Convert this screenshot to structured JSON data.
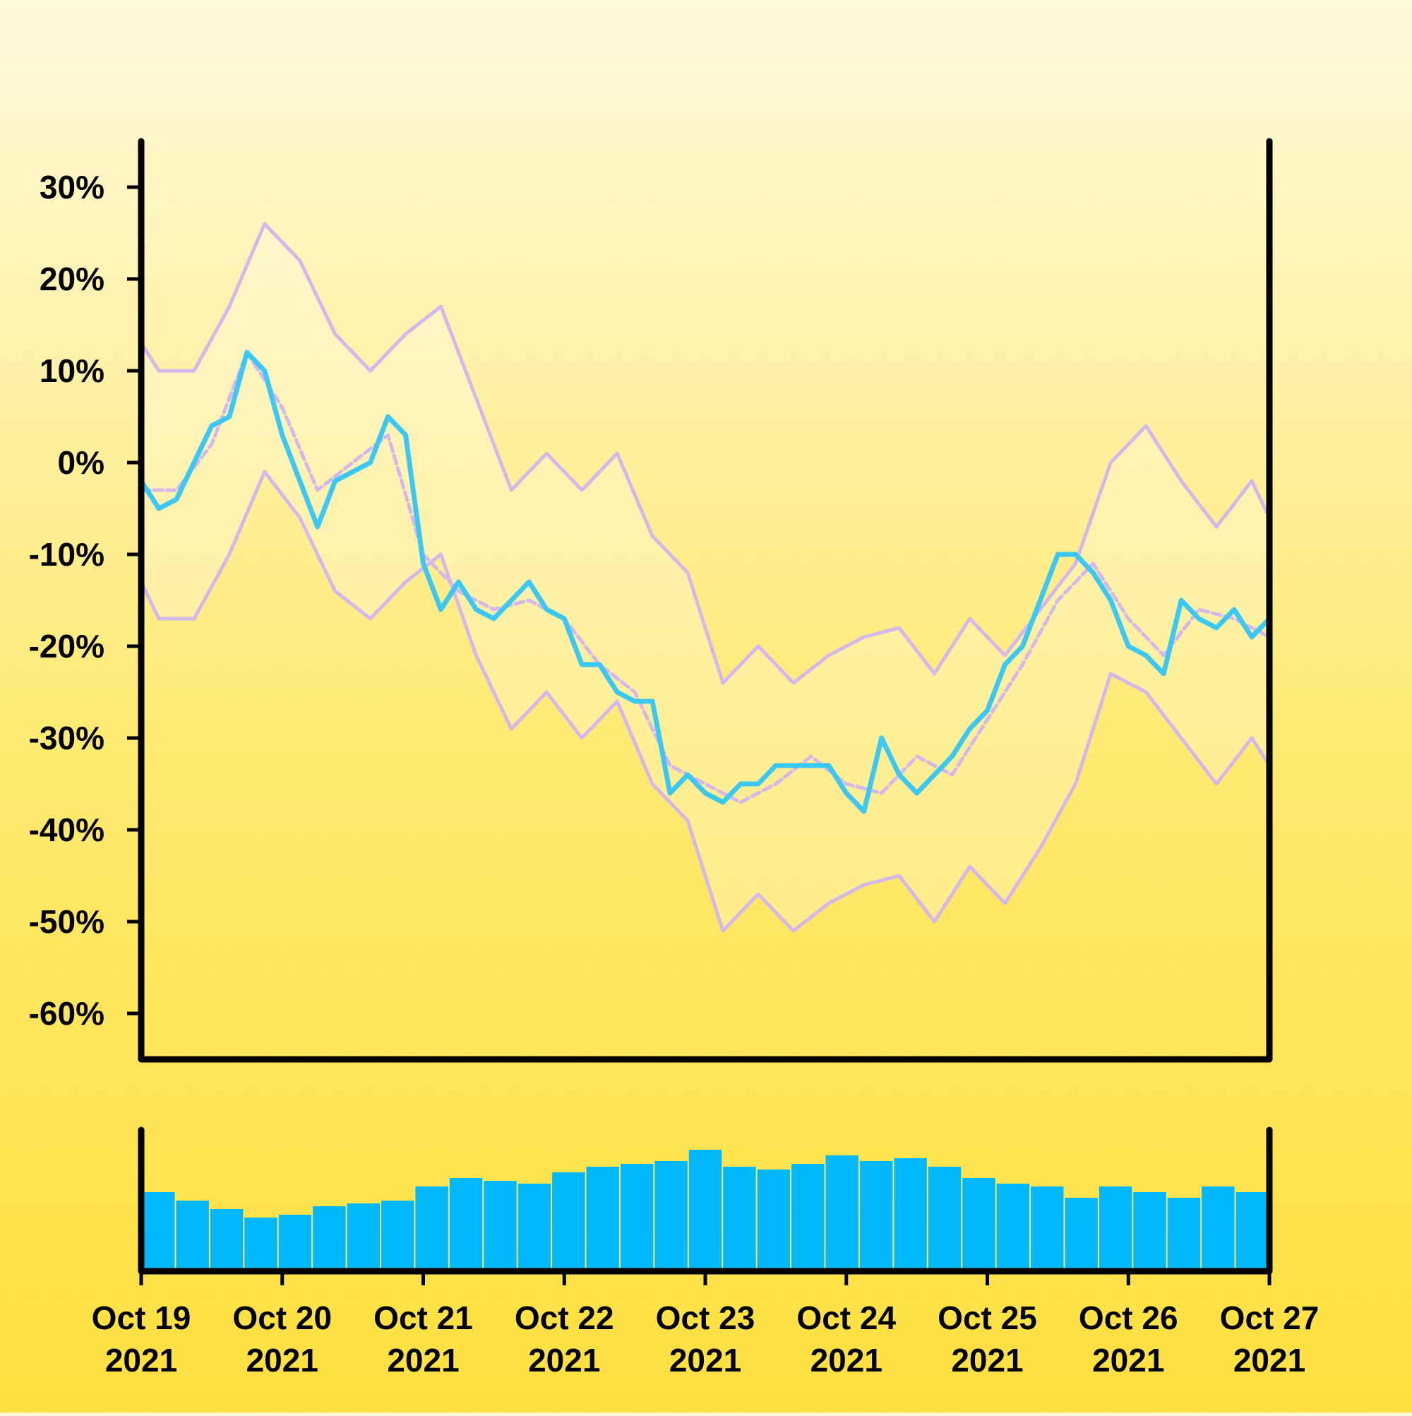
{
  "chart_data": {
    "type": "line",
    "x_range": [
      "2021-10-19",
      "2021-10-27"
    ],
    "ylim": [
      -0.65,
      0.35
    ],
    "y_ticks": [
      {
        "value": 0.3,
        "label": "30%"
      },
      {
        "value": 0.2,
        "label": "20%"
      },
      {
        "value": 0.1,
        "label": "10%"
      },
      {
        "value": 0.0,
        "label": "0%"
      },
      {
        "value": -0.1,
        "label": "-10%"
      },
      {
        "value": -0.2,
        "label": "-20%"
      },
      {
        "value": -0.3,
        "label": "-30%"
      },
      {
        "value": -0.4,
        "label": "-40%"
      },
      {
        "value": -0.5,
        "label": "-50%"
      },
      {
        "value": -0.6,
        "label": "-60%"
      }
    ],
    "x_ticks": [
      {
        "date": "2021-10-19",
        "line1": "Oct 19",
        "line2": "2021"
      },
      {
        "date": "2021-10-20",
        "line1": "Oct 20",
        "line2": "2021"
      },
      {
        "date": "2021-10-21",
        "line1": "Oct 21",
        "line2": "2021"
      },
      {
        "date": "2021-10-22",
        "line1": "Oct 22",
        "line2": "2021"
      },
      {
        "date": "2021-10-23",
        "line1": "Oct 23",
        "line2": "2021"
      },
      {
        "date": "2021-10-24",
        "line1": "Oct 24",
        "line2": "2021"
      },
      {
        "date": "2021-10-25",
        "line1": "Oct 25",
        "line2": "2021"
      },
      {
        "date": "2021-10-26",
        "line1": "Oct 26",
        "line2": "2021"
      },
      {
        "date": "2021-10-27",
        "line1": "Oct 27",
        "line2": "2021"
      }
    ],
    "series": [
      {
        "role": "price",
        "color": "#3cc8f5",
        "points": [
          [
            "2021-10-19T00:00",
            -0.02
          ],
          [
            "2021-10-19T03:00",
            -0.05
          ],
          [
            "2021-10-19T06:00",
            -0.04
          ],
          [
            "2021-10-19T09:00",
            0.0
          ],
          [
            "2021-10-19T12:00",
            0.04
          ],
          [
            "2021-10-19T15:00",
            0.05
          ],
          [
            "2021-10-19T18:00",
            0.12
          ],
          [
            "2021-10-19T21:00",
            0.1
          ],
          [
            "2021-10-20T00:00",
            0.03
          ],
          [
            "2021-10-20T03:00",
            -0.02
          ],
          [
            "2021-10-20T06:00",
            -0.07
          ],
          [
            "2021-10-20T09:00",
            -0.02
          ],
          [
            "2021-10-20T12:00",
            -0.01
          ],
          [
            "2021-10-20T15:00",
            0.0
          ],
          [
            "2021-10-20T18:00",
            0.05
          ],
          [
            "2021-10-20T21:00",
            0.03
          ],
          [
            "2021-10-21T00:00",
            -0.11
          ],
          [
            "2021-10-21T03:00",
            -0.16
          ],
          [
            "2021-10-21T06:00",
            -0.13
          ],
          [
            "2021-10-21T09:00",
            -0.16
          ],
          [
            "2021-10-21T12:00",
            -0.17
          ],
          [
            "2021-10-21T15:00",
            -0.15
          ],
          [
            "2021-10-21T18:00",
            -0.13
          ],
          [
            "2021-10-21T21:00",
            -0.16
          ],
          [
            "2021-10-22T00:00",
            -0.17
          ],
          [
            "2021-10-22T03:00",
            -0.22
          ],
          [
            "2021-10-22T06:00",
            -0.22
          ],
          [
            "2021-10-22T09:00",
            -0.25
          ],
          [
            "2021-10-22T12:00",
            -0.26
          ],
          [
            "2021-10-22T15:00",
            -0.26
          ],
          [
            "2021-10-22T18:00",
            -0.36
          ],
          [
            "2021-10-22T21:00",
            -0.34
          ],
          [
            "2021-10-23T00:00",
            -0.36
          ],
          [
            "2021-10-23T03:00",
            -0.37
          ],
          [
            "2021-10-23T06:00",
            -0.35
          ],
          [
            "2021-10-23T09:00",
            -0.35
          ],
          [
            "2021-10-23T12:00",
            -0.33
          ],
          [
            "2021-10-23T15:00",
            -0.33
          ],
          [
            "2021-10-23T18:00",
            -0.33
          ],
          [
            "2021-10-23T21:00",
            -0.33
          ],
          [
            "2021-10-24T00:00",
            -0.36
          ],
          [
            "2021-10-24T03:00",
            -0.38
          ],
          [
            "2021-10-24T06:00",
            -0.3
          ],
          [
            "2021-10-24T09:00",
            -0.34
          ],
          [
            "2021-10-24T12:00",
            -0.36
          ],
          [
            "2021-10-24T15:00",
            -0.34
          ],
          [
            "2021-10-24T18:00",
            -0.32
          ],
          [
            "2021-10-24T21:00",
            -0.29
          ],
          [
            "2021-10-25T00:00",
            -0.27
          ],
          [
            "2021-10-25T03:00",
            -0.22
          ],
          [
            "2021-10-25T06:00",
            -0.2
          ],
          [
            "2021-10-25T09:00",
            -0.15
          ],
          [
            "2021-10-25T12:00",
            -0.1
          ],
          [
            "2021-10-25T15:00",
            -0.1
          ],
          [
            "2021-10-25T18:00",
            -0.12
          ],
          [
            "2021-10-25T21:00",
            -0.15
          ],
          [
            "2021-10-26T00:00",
            -0.2
          ],
          [
            "2021-10-26T03:00",
            -0.21
          ],
          [
            "2021-10-26T06:00",
            -0.23
          ],
          [
            "2021-10-26T09:00",
            -0.15
          ],
          [
            "2021-10-26T12:00",
            -0.17
          ],
          [
            "2021-10-26T15:00",
            -0.18
          ],
          [
            "2021-10-26T18:00",
            -0.16
          ],
          [
            "2021-10-26T21:00",
            -0.19
          ],
          [
            "2021-10-27T00:00",
            -0.17
          ]
        ]
      },
      {
        "role": "moving-average",
        "color": "#d4b8ec",
        "dashed": true,
        "points": [
          [
            "2021-10-19T00:00",
            -0.03
          ],
          [
            "2021-10-19T06:00",
            -0.03
          ],
          [
            "2021-10-19T12:00",
            0.02
          ],
          [
            "2021-10-19T18:00",
            0.12
          ],
          [
            "2021-10-20T00:00",
            0.06
          ],
          [
            "2021-10-20T06:00",
            -0.03
          ],
          [
            "2021-10-20T12:00",
            0.0
          ],
          [
            "2021-10-20T18:00",
            0.03
          ],
          [
            "2021-10-21T00:00",
            -0.1
          ],
          [
            "2021-10-21T06:00",
            -0.14
          ],
          [
            "2021-10-21T12:00",
            -0.16
          ],
          [
            "2021-10-21T18:00",
            -0.15
          ],
          [
            "2021-10-22T00:00",
            -0.17
          ],
          [
            "2021-10-22T06:00",
            -0.22
          ],
          [
            "2021-10-22T12:00",
            -0.25
          ],
          [
            "2021-10-22T18:00",
            -0.33
          ],
          [
            "2021-10-23T00:00",
            -0.35
          ],
          [
            "2021-10-23T06:00",
            -0.37
          ],
          [
            "2021-10-23T12:00",
            -0.35
          ],
          [
            "2021-10-23T18:00",
            -0.32
          ],
          [
            "2021-10-24T00:00",
            -0.35
          ],
          [
            "2021-10-24T06:00",
            -0.36
          ],
          [
            "2021-10-24T12:00",
            -0.32
          ],
          [
            "2021-10-24T18:00",
            -0.34
          ],
          [
            "2021-10-25T00:00",
            -0.28
          ],
          [
            "2021-10-25T06:00",
            -0.22
          ],
          [
            "2021-10-25T12:00",
            -0.15
          ],
          [
            "2021-10-25T18:00",
            -0.11
          ],
          [
            "2021-10-26T00:00",
            -0.17
          ],
          [
            "2021-10-26T06:00",
            -0.21
          ],
          [
            "2021-10-26T12:00",
            -0.16
          ],
          [
            "2021-10-26T18:00",
            -0.17
          ],
          [
            "2021-10-27T00:00",
            -0.19
          ]
        ]
      },
      {
        "role": "upper-band",
        "color": "#d4b8ec",
        "points": [
          [
            "2021-10-19T00:00",
            0.13
          ],
          [
            "2021-10-19T03:00",
            0.1
          ],
          [
            "2021-10-19T09:00",
            0.1
          ],
          [
            "2021-10-19T15:00",
            0.17
          ],
          [
            "2021-10-19T21:00",
            0.26
          ],
          [
            "2021-10-20T03:00",
            0.22
          ],
          [
            "2021-10-20T09:00",
            0.14
          ],
          [
            "2021-10-20T15:00",
            0.1
          ],
          [
            "2021-10-20T21:00",
            0.14
          ],
          [
            "2021-10-21T03:00",
            0.17
          ],
          [
            "2021-10-21T09:00",
            0.07
          ],
          [
            "2021-10-21T15:00",
            -0.03
          ],
          [
            "2021-10-21T21:00",
            0.01
          ],
          [
            "2021-10-22T03:00",
            -0.03
          ],
          [
            "2021-10-22T09:00",
            0.01
          ],
          [
            "2021-10-22T15:00",
            -0.08
          ],
          [
            "2021-10-22T21:00",
            -0.12
          ],
          [
            "2021-10-23T03:00",
            -0.24
          ],
          [
            "2021-10-23T09:00",
            -0.2
          ],
          [
            "2021-10-23T15:00",
            -0.24
          ],
          [
            "2021-10-23T21:00",
            -0.21
          ],
          [
            "2021-10-24T03:00",
            -0.19
          ],
          [
            "2021-10-24T09:00",
            -0.18
          ],
          [
            "2021-10-24T15:00",
            -0.23
          ],
          [
            "2021-10-24T21:00",
            -0.17
          ],
          [
            "2021-10-25T03:00",
            -0.21
          ],
          [
            "2021-10-25T09:00",
            -0.16
          ],
          [
            "2021-10-25T15:00",
            -0.11
          ],
          [
            "2021-10-25T21:00",
            0.0
          ],
          [
            "2021-10-26T03:00",
            0.04
          ],
          [
            "2021-10-26T09:00",
            -0.02
          ],
          [
            "2021-10-26T15:00",
            -0.07
          ],
          [
            "2021-10-26T21:00",
            -0.02
          ],
          [
            "2021-10-27T00:00",
            -0.06
          ]
        ]
      },
      {
        "role": "lower-band",
        "color": "#d4b8ec",
        "points": [
          [
            "2021-10-19T00:00",
            -0.13
          ],
          [
            "2021-10-19T03:00",
            -0.17
          ],
          [
            "2021-10-19T09:00",
            -0.17
          ],
          [
            "2021-10-19T15:00",
            -0.1
          ],
          [
            "2021-10-19T21:00",
            -0.01
          ],
          [
            "2021-10-20T03:00",
            -0.06
          ],
          [
            "2021-10-20T09:00",
            -0.14
          ],
          [
            "2021-10-20T15:00",
            -0.17
          ],
          [
            "2021-10-20T21:00",
            -0.13
          ],
          [
            "2021-10-21T03:00",
            -0.1
          ],
          [
            "2021-10-21T09:00",
            -0.21
          ],
          [
            "2021-10-21T15:00",
            -0.29
          ],
          [
            "2021-10-21T21:00",
            -0.25
          ],
          [
            "2021-10-22T03:00",
            -0.3
          ],
          [
            "2021-10-22T09:00",
            -0.26
          ],
          [
            "2021-10-22T15:00",
            -0.35
          ],
          [
            "2021-10-22T21:00",
            -0.39
          ],
          [
            "2021-10-23T03:00",
            -0.51
          ],
          [
            "2021-10-23T09:00",
            -0.47
          ],
          [
            "2021-10-23T15:00",
            -0.51
          ],
          [
            "2021-10-23T21:00",
            -0.48
          ],
          [
            "2021-10-24T03:00",
            -0.46
          ],
          [
            "2021-10-24T09:00",
            -0.45
          ],
          [
            "2021-10-24T15:00",
            -0.5
          ],
          [
            "2021-10-24T21:00",
            -0.44
          ],
          [
            "2021-10-25T03:00",
            -0.48
          ],
          [
            "2021-10-25T09:00",
            -0.42
          ],
          [
            "2021-10-25T15:00",
            -0.35
          ],
          [
            "2021-10-25T21:00",
            -0.23
          ],
          [
            "2021-10-26T03:00",
            -0.25
          ],
          [
            "2021-10-26T09:00",
            -0.3
          ],
          [
            "2021-10-26T15:00",
            -0.35
          ],
          [
            "2021-10-26T21:00",
            -0.3
          ],
          [
            "2021-10-27T00:00",
            -0.33
          ]
        ]
      }
    ],
    "volume": {
      "type": "bar",
      "color": "#00b8fa",
      "points": [
        [
          "2021-10-19T00:00",
          0.56
        ],
        [
          "2021-10-19T06:00",
          0.5
        ],
        [
          "2021-10-19T12:00",
          0.44
        ],
        [
          "2021-10-19T18:00",
          0.38
        ],
        [
          "2021-10-20T00:00",
          0.4
        ],
        [
          "2021-10-20T06:00",
          0.46
        ],
        [
          "2021-10-20T12:00",
          0.48
        ],
        [
          "2021-10-20T18:00",
          0.5
        ],
        [
          "2021-10-21T00:00",
          0.6
        ],
        [
          "2021-10-21T06:00",
          0.66
        ],
        [
          "2021-10-21T12:00",
          0.64
        ],
        [
          "2021-10-21T18:00",
          0.62
        ],
        [
          "2021-10-22T00:00",
          0.7
        ],
        [
          "2021-10-22T06:00",
          0.74
        ],
        [
          "2021-10-22T12:00",
          0.76
        ],
        [
          "2021-10-22T18:00",
          0.78
        ],
        [
          "2021-10-23T00:00",
          0.86
        ],
        [
          "2021-10-23T06:00",
          0.74
        ],
        [
          "2021-10-23T12:00",
          0.72
        ],
        [
          "2021-10-23T18:00",
          0.76
        ],
        [
          "2021-10-24T00:00",
          0.82
        ],
        [
          "2021-10-24T06:00",
          0.78
        ],
        [
          "2021-10-24T12:00",
          0.8
        ],
        [
          "2021-10-24T18:00",
          0.74
        ],
        [
          "2021-10-25T00:00",
          0.66
        ],
        [
          "2021-10-25T06:00",
          0.62
        ],
        [
          "2021-10-25T12:00",
          0.6
        ],
        [
          "2021-10-25T18:00",
          0.52
        ],
        [
          "2021-10-26T00:00",
          0.6
        ],
        [
          "2021-10-26T06:00",
          0.56
        ],
        [
          "2021-10-26T12:00",
          0.52
        ],
        [
          "2021-10-26T18:00",
          0.6
        ],
        [
          "2021-10-27T00:00",
          0.56
        ]
      ]
    }
  }
}
